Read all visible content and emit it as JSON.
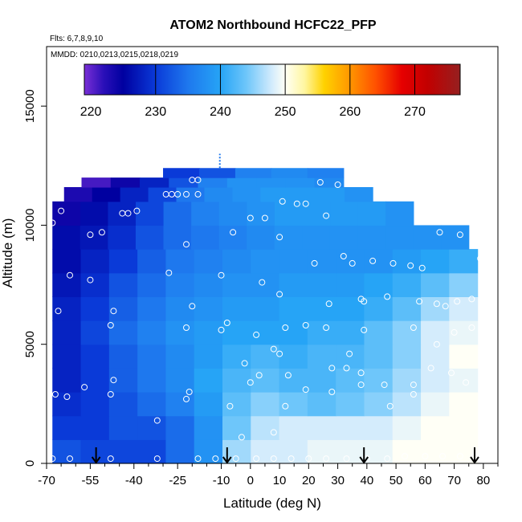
{
  "chart_data": {
    "type": "heatmap",
    "title": "ATOM2 Northbound HCFC22_PFP",
    "flights_note": "Flts: 6,7,8,9,10",
    "dates_note": "MMDD: 0210,0213,0215,0218,0219",
    "xlabel": "Latitude (deg N)",
    "ylabel": "Altitude (m)",
    "xlim": [
      -70,
      85
    ],
    "ylim": [
      0,
      17500
    ],
    "x_ticks": [
      -70,
      -55,
      -40,
      -25,
      -10,
      0,
      10,
      20,
      30,
      40,
      50,
      60,
      70,
      80
    ],
    "x_tick_labels": [
      "-70",
      "-55",
      "-40",
      "-25",
      "-10",
      "0",
      "10",
      "20",
      "30",
      "40",
      "50",
      "60",
      "70",
      "80"
    ],
    "x_minor_ticks": [
      -65,
      -60,
      -50,
      -45,
      -35,
      -30,
      -20,
      -15,
      -5,
      5,
      15,
      25,
      35,
      45,
      55,
      65,
      75,
      85
    ],
    "y_ticks": [
      0,
      5000,
      10000,
      15000
    ],
    "y_tick_labels": [
      "0",
      "5000",
      "10000",
      "15000"
    ],
    "colorbar": {
      "min": 219,
      "max": 277,
      "ticks": [
        220,
        230,
        240,
        250,
        260,
        270
      ],
      "tick_labels": [
        "220",
        "230",
        "240",
        "250",
        "260",
        "270"
      ],
      "stops": [
        {
          "v": 219,
          "color": "#7a2fd6"
        },
        {
          "v": 222,
          "color": "#2a0fb8"
        },
        {
          "v": 225,
          "color": "#0000a0"
        },
        {
          "v": 230,
          "color": "#0a3ad8"
        },
        {
          "v": 235,
          "color": "#1e78ee"
        },
        {
          "v": 240,
          "color": "#26a4f6"
        },
        {
          "v": 244,
          "color": "#6ec6fa"
        },
        {
          "v": 248,
          "color": "#d4ecfc"
        },
        {
          "v": 250,
          "color": "#fffff6"
        },
        {
          "v": 253,
          "color": "#fff6a0"
        },
        {
          "v": 256,
          "color": "#ffd200"
        },
        {
          "v": 260,
          "color": "#ff9600"
        },
        {
          "v": 264,
          "color": "#ff5000"
        },
        {
          "v": 268,
          "color": "#e60000"
        },
        {
          "v": 272,
          "color": "#c20000"
        },
        {
          "v": 277,
          "color": "#952020"
        }
      ]
    },
    "altitude_bins": [
      {
        "y0": 0,
        "y1": 1000,
        "x_min": -68,
        "x_max": 78,
        "values": [
          232,
          231,
          231,
          231,
          234,
          238,
          246,
          248,
          248,
          249,
          249,
          249,
          250,
          250,
          250
        ]
      },
      {
        "y0": 1000,
        "y1": 2000,
        "x_min": -68,
        "x_max": 78,
        "values": [
          230,
          230,
          232,
          232,
          234,
          238,
          244,
          247,
          248,
          248,
          248,
          248,
          249,
          250,
          250
        ]
      },
      {
        "y0": 2000,
        "y1": 3000,
        "x_min": -68,
        "x_max": 78,
        "values": [
          229,
          230,
          232,
          234,
          236,
          239,
          243,
          245,
          244,
          243,
          244,
          245,
          247,
          249,
          250
        ]
      },
      {
        "y0": 3000,
        "y1": 4000,
        "x_min": -68,
        "x_max": 78,
        "values": [
          228,
          230,
          233,
          235,
          237,
          240,
          242,
          243,
          242,
          242,
          243,
          244,
          246,
          248,
          249
        ]
      },
      {
        "y0": 4000,
        "y1": 5000,
        "x_min": -68,
        "x_max": 78,
        "values": [
          228,
          230,
          233,
          235,
          237,
          239,
          241,
          242,
          241,
          242,
          242,
          243,
          245,
          248,
          250
        ]
      },
      {
        "y0": 5000,
        "y1": 6000,
        "x_min": -68,
        "x_max": 78,
        "values": [
          228,
          231,
          234,
          236,
          238,
          239,
          240,
          240,
          240,
          241,
          241,
          243,
          245,
          248,
          249
        ]
      },
      {
        "y0": 6000,
        "y1": 7000,
        "x_min": -68,
        "x_max": 78,
        "values": [
          228,
          230,
          233,
          235,
          237,
          238,
          239,
          239,
          240,
          240,
          240,
          241,
          243,
          246,
          248
        ]
      },
      {
        "y0": 7000,
        "y1": 8000,
        "x_min": -68,
        "x_max": 78,
        "values": [
          227,
          229,
          232,
          234,
          236,
          237,
          238,
          238,
          239,
          239,
          239,
          240,
          241,
          243,
          245
        ]
      },
      {
        "y0": 8000,
        "y1": 9000,
        "x_min": -68,
        "x_max": 78,
        "values": [
          226,
          228,
          230,
          233,
          235,
          236,
          237,
          238,
          238,
          238,
          238,
          238,
          239,
          240,
          241
        ]
      },
      {
        "y0": 9000,
        "y1": 10000,
        "x_min": -68,
        "x_max": 75,
        "values": [
          226,
          227,
          229,
          232,
          234,
          235,
          236,
          237,
          238,
          238,
          238,
          238,
          238,
          238,
          238
        ]
      },
      {
        "y0": 10000,
        "y1": 11000,
        "x_min": -68,
        "x_max": 56,
        "values": [
          224,
          226,
          228,
          231,
          234,
          236,
          237,
          238,
          239,
          239,
          239,
          239,
          238
        ]
      },
      {
        "y0": 11000,
        "y1": 11600,
        "x_min": -64,
        "x_max": 42,
        "values": [
          223,
          225,
          228,
          231,
          235,
          237,
          238,
          239,
          239,
          239,
          238
        ]
      },
      {
        "y0": 11600,
        "y1": 12000,
        "x_min": -58,
        "x_max": 32,
        "values": [
          221,
          224,
          228,
          232,
          236,
          238,
          238,
          238,
          237
        ]
      },
      {
        "y0": 12000,
        "y1": 12400,
        "x_min": -30,
        "x_max": 32,
        "values": [
          230,
          232,
          236,
          237,
          236
        ]
      }
    ],
    "sample_points": [
      {
        "x": -68,
        "y": 200
      },
      {
        "x": -62,
        "y": 200
      },
      {
        "x": -48,
        "y": 200
      },
      {
        "x": -32,
        "y": 200
      },
      {
        "x": -18,
        "y": 200
      },
      {
        "x": -12,
        "y": 200
      },
      {
        "x": -5,
        "y": 200
      },
      {
        "x": 2,
        "y": 200
      },
      {
        "x": 8,
        "y": 200
      },
      {
        "x": 14,
        "y": 200
      },
      {
        "x": 20,
        "y": 200
      },
      {
        "x": 26,
        "y": 200
      },
      {
        "x": 33,
        "y": 200
      },
      {
        "x": 40,
        "y": 200
      },
      {
        "x": 47,
        "y": 200
      },
      {
        "x": 53,
        "y": 300
      },
      {
        "x": 60,
        "y": 300
      },
      {
        "x": 66,
        "y": 300
      },
      {
        "x": 72,
        "y": 300
      },
      {
        "x": 77,
        "y": 300
      },
      {
        "x": -3,
        "y": 1100
      },
      {
        "x": 8,
        "y": 1300
      },
      {
        "x": -32,
        "y": 1800
      },
      {
        "x": -7,
        "y": 2400
      },
      {
        "x": 12,
        "y": 2400
      },
      {
        "x": 48,
        "y": 2400
      },
      {
        "x": -63,
        "y": 2800
      },
      {
        "x": -67,
        "y": 2900
      },
      {
        "x": -48,
        "y": 2900
      },
      {
        "x": -22,
        "y": 2700
      },
      {
        "x": 19,
        "y": 3100
      },
      {
        "x": 28,
        "y": 3000
      },
      {
        "x": -57,
        "y": 3200
      },
      {
        "x": -21,
        "y": 3000
      },
      {
        "x": 56,
        "y": 2900
      },
      {
        "x": 38,
        "y": 3300
      },
      {
        "x": 46,
        "y": 3300
      },
      {
        "x": -2,
        "y": 4200
      },
      {
        "x": 3,
        "y": 3700
      },
      {
        "x": 13,
        "y": 3700
      },
      {
        "x": -47,
        "y": 3500
      },
      {
        "x": 0,
        "y": 3400
      },
      {
        "x": 28,
        "y": 4000
      },
      {
        "x": 33,
        "y": 4000
      },
      {
        "x": 38,
        "y": 3800
      },
      {
        "x": 56,
        "y": 3300
      },
      {
        "x": 62,
        "y": 4000
      },
      {
        "x": 69,
        "y": 3800
      },
      {
        "x": 74,
        "y": 3400
      },
      {
        "x": 80,
        "y": 4300
      },
      {
        "x": -66,
        "y": 6400
      },
      {
        "x": -47,
        "y": 6400
      },
      {
        "x": -48,
        "y": 5800
      },
      {
        "x": -22,
        "y": 5700
      },
      {
        "x": -10,
        "y": 5600
      },
      {
        "x": -8,
        "y": 5900
      },
      {
        "x": 2,
        "y": 5400
      },
      {
        "x": 8,
        "y": 4800
      },
      {
        "x": 10,
        "y": 4600
      },
      {
        "x": 12,
        "y": 5700
      },
      {
        "x": 19,
        "y": 5800
      },
      {
        "x": 26,
        "y": 5700
      },
      {
        "x": 34,
        "y": 4600
      },
      {
        "x": 39,
        "y": 5600
      },
      {
        "x": 56,
        "y": 5700
      },
      {
        "x": 64,
        "y": 5000
      },
      {
        "x": 70,
        "y": 5500
      },
      {
        "x": 76,
        "y": 5700
      },
      {
        "x": -20,
        "y": 6600
      },
      {
        "x": 27,
        "y": 6700
      },
      {
        "x": 38,
        "y": 6900
      },
      {
        "x": 39,
        "y": 6800
      },
      {
        "x": 47,
        "y": 7000
      },
      {
        "x": 58,
        "y": 6800
      },
      {
        "x": 64,
        "y": 6700
      },
      {
        "x": 67,
        "y": 6600
      },
      {
        "x": 71,
        "y": 6800
      },
      {
        "x": 76,
        "y": 6900
      },
      {
        "x": -62,
        "y": 7900
      },
      {
        "x": -55,
        "y": 7700
      },
      {
        "x": -28,
        "y": 8000
      },
      {
        "x": -10,
        "y": 7900
      },
      {
        "x": 4,
        "y": 7600
      },
      {
        "x": 10,
        "y": 7100
      },
      {
        "x": 22,
        "y": 8400
      },
      {
        "x": 32,
        "y": 8700
      },
      {
        "x": 35,
        "y": 8400
      },
      {
        "x": 42,
        "y": 8500
      },
      {
        "x": 49,
        "y": 8400
      },
      {
        "x": 55,
        "y": 8300
      },
      {
        "x": 59,
        "y": 8200
      },
      {
        "x": 79,
        "y": 8600
      },
      {
        "x": -55,
        "y": 9600
      },
      {
        "x": -51,
        "y": 9700
      },
      {
        "x": -22,
        "y": 9200
      },
      {
        "x": -6,
        "y": 9700
      },
      {
        "x": 10,
        "y": 9500
      },
      {
        "x": 65,
        "y": 9700
      },
      {
        "x": 72,
        "y": 9600
      },
      {
        "x": -68,
        "y": 10100
      },
      {
        "x": -44,
        "y": 10500
      },
      {
        "x": -42,
        "y": 10500
      },
      {
        "x": -39,
        "y": 10600
      },
      {
        "x": 0,
        "y": 10300
      },
      {
        "x": 5,
        "y": 10300
      },
      {
        "x": 11,
        "y": 11000
      },
      {
        "x": 16,
        "y": 10900
      },
      {
        "x": 19,
        "y": 10900
      },
      {
        "x": 26,
        "y": 10400
      },
      {
        "x": -65,
        "y": 10600
      },
      {
        "x": -29,
        "y": 11300
      },
      {
        "x": -27,
        "y": 11300
      },
      {
        "x": -25,
        "y": 11300
      },
      {
        "x": -22,
        "y": 11300
      },
      {
        "x": -18,
        "y": 11300
      },
      {
        "x": -64,
        "y": 11800
      },
      {
        "x": -20,
        "y": 11900
      },
      {
        "x": -18,
        "y": 11900
      },
      {
        "x": 24,
        "y": 11800
      },
      {
        "x": 30,
        "y": 11700
      },
      {
        "x": 35,
        "y": 11800
      }
    ],
    "arrow_markers": [
      -53,
      -8,
      39,
      77
    ],
    "tick_marker_top": {
      "x": -10.5,
      "y0": 12400,
      "y1": 13000
    }
  }
}
